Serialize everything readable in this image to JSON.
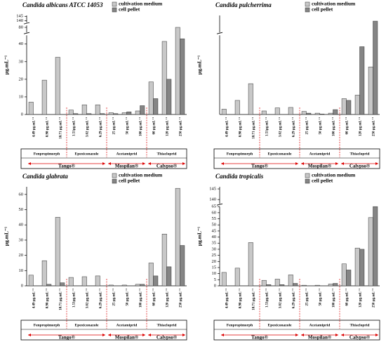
{
  "charts": [
    {
      "type": "bar",
      "title": "Candida albicans ATCC 14053",
      "y_label": "µg.mL⁻¹",
      "categories": [
        "4.49 µg.mL⁻¹",
        "8.98 µg.mL⁻¹",
        "18.71 µg.mL⁻¹",
        "1.51µg.mL⁻¹",
        "3.02 µg.mL⁻¹",
        "6.29 µg.mL⁻¹",
        "25 µg.mL⁻¹",
        "50 µg.mL⁻¹",
        "100 µg.mL⁻¹",
        "60 µg.mL⁻¹",
        "120 µg.mL⁻¹",
        "250 µg.mL⁻¹"
      ],
      "groups": [
        "Fenpropimorph",
        "Epoxiconazole",
        "Acetamiprid",
        "Thiacloprid"
      ],
      "products": [
        "Tango®",
        "Mospilan®",
        "Calypso®"
      ],
      "series": [
        {
          "name": "cultivation medium",
          "color": "#c8c8c8",
          "values": [
            7,
            19.5,
            32.5,
            2.5,
            5.5,
            5.5,
            1,
            1,
            2,
            18.5,
            41.5,
            80
          ]
        },
        {
          "name": "cell pellet",
          "color": "#858585",
          "values": [
            0,
            0,
            0,
            0.5,
            0.5,
            0.5,
            0.5,
            1.5,
            5,
            9,
            20,
            43
          ]
        }
      ],
      "y_segments": [
        {
          "ylim": [
            0,
            45
          ],
          "yticks": [
            0,
            10,
            20,
            30,
            40
          ]
        },
        {
          "ylim": [
            75,
            82
          ],
          "yticks": [
            80
          ]
        },
        {
          "ylim": [
            138,
            146
          ],
          "yticks": [
            140,
            145
          ]
        }
      ]
    },
    {
      "type": "bar",
      "title": "Candida pulcherrima",
      "y_label": "µg.mL⁻¹",
      "categories": [
        "4.49 µg.mL⁻¹",
        "8.98 µg.mL⁻¹",
        "18.71 µg.mL⁻¹",
        "1.51µg.mL⁻¹",
        "3.02 µg.mL⁻¹",
        "6.29 µg.mL⁻¹",
        "25 µg.mL⁻¹",
        "50 µg.mL⁻¹",
        "100 µg.mL⁻¹",
        "60 µg.mL⁻¹",
        "120 µg.mL⁻¹",
        "250 µg.mL⁻¹"
      ],
      "groups": [
        "Fenpropimorph",
        "Epoxiconazole",
        "Acetamiprid",
        "Thiacloprid"
      ],
      "products": [
        "Tango®",
        "Mospilan®",
        "Calypso®"
      ],
      "series": [
        {
          "name": "cultivation medium",
          "color": "#c8c8c8",
          "values": [
            6,
            16,
            35,
            4,
            7.5,
            8,
            3.5,
            1.5,
            1.5,
            18,
            22,
            54
          ]
        },
        {
          "name": "cell pellet",
          "color": "#858585",
          "values": [
            0,
            0,
            0,
            0,
            0,
            0,
            1.5,
            0.5,
            5.5,
            16,
            77,
            140
          ]
        }
      ],
      "y_segments": [
        {
          "ylim": [
            0,
            90
          ],
          "yticks": []
        },
        {
          "ylim": [
            130,
            145
          ],
          "yticks": []
        }
      ]
    },
    {
      "type": "bar",
      "title": "Candida glabrata",
      "y_label": "µg.mL⁻¹",
      "categories": [
        "4.49 µg.mL⁻¹",
        "8.98 µg.mL⁻¹",
        "18.71 µg.mL⁻¹",
        "1.51µg.mL⁻¹",
        "3.02 µg.mL⁻¹",
        "6.29 µg.mL⁻¹",
        "25 µg.mL⁻¹",
        "50 µg.mL⁻¹",
        "100 µg.mL⁻¹",
        "60 µg.mL⁻¹",
        "120 µg.mL⁻¹",
        "250 µg.mL⁻¹"
      ],
      "groups": [
        "Fenpropimorph",
        "Epoxiconazole",
        "Acetamiprid",
        "Thiacloprid"
      ],
      "products": [
        "Tango®",
        "Mospilan®",
        "Calypso®"
      ],
      "series": [
        {
          "name": "cultivation medium",
          "color": "#c8c8c8",
          "values": [
            7,
            16.5,
            45,
            5.5,
            6,
            6.5,
            0.5,
            0.5,
            1,
            15,
            34,
            64
          ]
        },
        {
          "name": "cell pellet",
          "color": "#858585",
          "values": [
            0,
            1,
            2,
            0,
            0,
            0,
            0,
            0,
            1,
            6.5,
            12.5,
            26.5
          ]
        }
      ],
      "y_segments": [
        {
          "ylim": [
            0,
            65
          ],
          "yticks": [
            0,
            10,
            20,
            30,
            40,
            50,
            60
          ]
        }
      ]
    },
    {
      "type": "bar",
      "title": "Candida tropicalis",
      "y_label": "µg.mL⁻¹",
      "categories": [
        "4.49 µg.mL⁻¹",
        "8.98 µg.mL⁻¹",
        "18.71 µg.mL⁻¹",
        "1.51µg.mL⁻¹",
        "3.02 µg.mL⁻¹",
        "6.29 µg.mL⁻¹",
        "25 µg.mL⁻¹",
        "50 µg.mL⁻¹",
        "100 µg.mL⁻¹",
        "60 µg.mL⁻¹",
        "120 µg.mL⁻¹",
        "250 µg.mL⁻¹"
      ],
      "groups": [
        "Fenpropimorph",
        "Epoxiconazole",
        "Acetamiprid",
        "Thiacloprid"
      ],
      "products": [
        "Tango®",
        "Mospilan®",
        "Calypso®"
      ],
      "series": [
        {
          "name": "cultivation medium",
          "color": "#c8c8c8",
          "values": [
            11,
            14.5,
            35.5,
            4.5,
            5.5,
            9,
            0.5,
            0.5,
            1.5,
            18,
            31,
            56
          ]
        },
        {
          "name": "cell pellet",
          "color": "#858585",
          "values": [
            0,
            0,
            0,
            1,
            1,
            2,
            0,
            0,
            2,
            13,
            30,
            65
          ]
        }
      ],
      "y_segments": [
        {
          "ylim": [
            0,
            65
          ],
          "yticks": [
            0,
            5,
            10,
            15,
            20,
            25,
            30,
            35,
            40,
            45,
            50,
            55,
            60,
            65
          ]
        },
        {
          "ylim": [
            138,
            146
          ],
          "yticks": [
            140,
            145
          ]
        }
      ]
    }
  ]
}
